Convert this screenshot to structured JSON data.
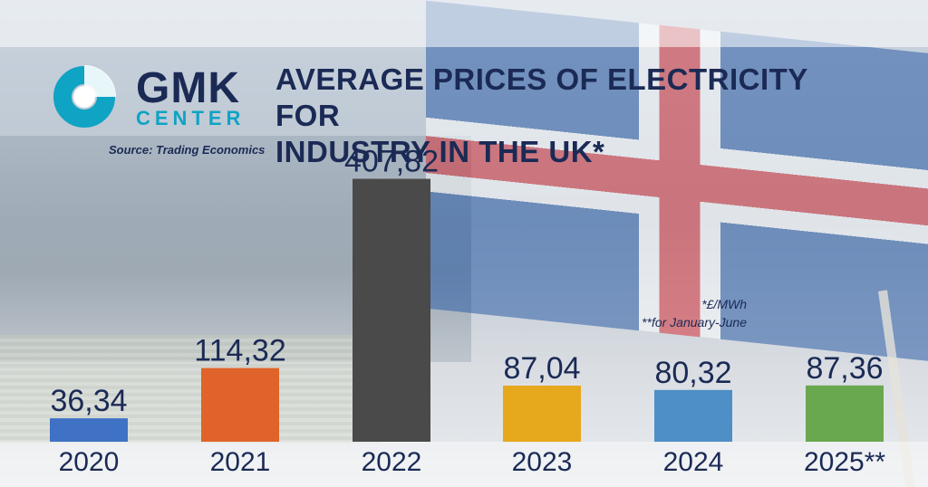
{
  "header": {
    "logo_main": "GMK",
    "logo_sub": "CENTER",
    "title_line1": "AVERAGE PRICES OF ELECTRICITY FOR",
    "title_line2": "INDUSTRY IN THE UK*",
    "source": "Source: Trading Economics"
  },
  "notes": {
    "unit": "*£/MWh",
    "period": "**for January-June"
  },
  "colors": {
    "brand_navy": "#1b2a55",
    "brand_cyan": "#0fa3c4"
  },
  "chart_data": {
    "type": "bar",
    "categories": [
      "2020",
      "2021",
      "2022",
      "2023",
      "2024",
      "2025**"
    ],
    "values": [
      36.34,
      114.32,
      407.82,
      87.04,
      80.32,
      87.36
    ],
    "value_labels": [
      "36,34",
      "114,32",
      "407,82",
      "87,04",
      "80,32",
      "87,36"
    ],
    "bar_colors": [
      "#3f72c4",
      "#e0632a",
      "#4a4a4a",
      "#e6a81c",
      "#4d8fc6",
      "#6aa84f"
    ],
    "title": "AVERAGE PRICES OF ELECTRICITY FOR INDUSTRY IN THE UK*",
    "ylim": [
      0,
      410
    ],
    "grid": false,
    "legend": "none"
  }
}
